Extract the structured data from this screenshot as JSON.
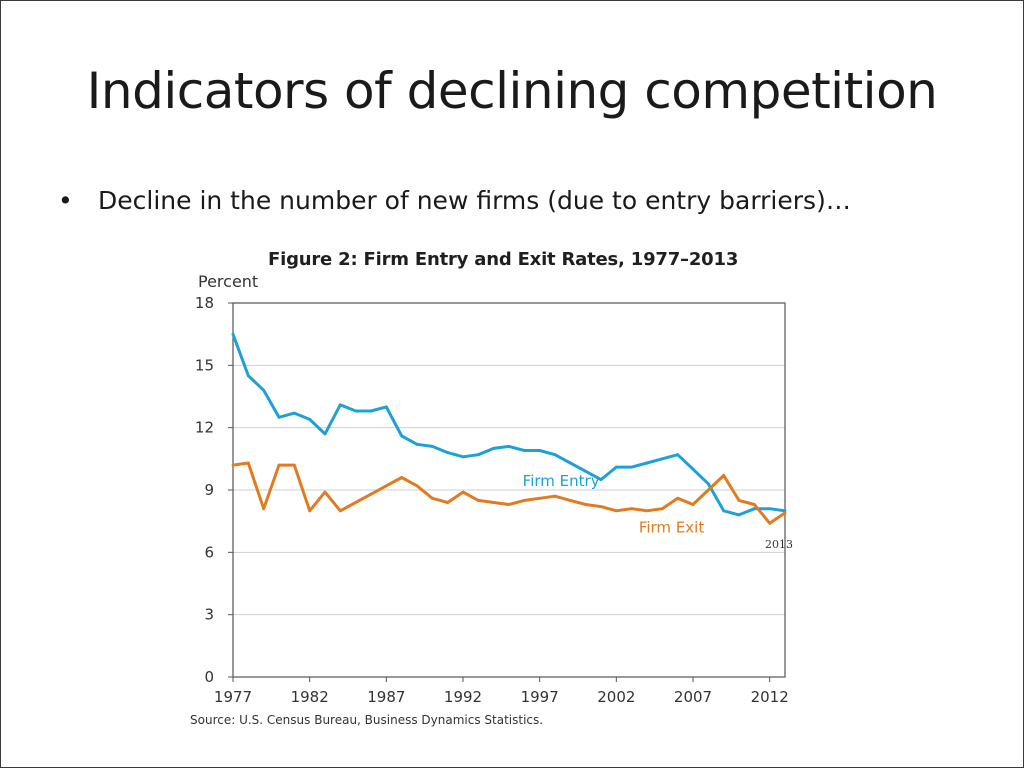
{
  "slide": {
    "title": "Indicators of declining competition",
    "bullet_marker": "•",
    "bullet_text": "Decline in the number of new firms (due to entry barriers)…"
  },
  "chart_data": {
    "type": "line",
    "title": "Figure 2: Firm Entry and Exit Rates, 1977–2013",
    "ylabel": "Percent",
    "xlabel": "",
    "source": "Source: U.S. Census Bureau, Business Dynamics Statistics.",
    "xlim": [
      1977,
      2013
    ],
    "ylim": [
      0,
      18
    ],
    "x_ticks": [
      1977,
      1982,
      1987,
      1992,
      1997,
      2002,
      2007,
      2012
    ],
    "y_ticks": [
      0,
      3,
      6,
      9,
      12,
      15,
      18
    ],
    "grid": true,
    "end_label": "2013",
    "x": [
      1977,
      1978,
      1979,
      1980,
      1981,
      1982,
      1983,
      1984,
      1985,
      1986,
      1987,
      1988,
      1989,
      1990,
      1991,
      1992,
      1993,
      1994,
      1995,
      1996,
      1997,
      1998,
      1999,
      2000,
      2001,
      2002,
      2003,
      2004,
      2005,
      2006,
      2007,
      2008,
      2009,
      2010,
      2011,
      2012,
      2013
    ],
    "series": [
      {
        "name": "Firm Entry",
        "color": "#1fa0d6",
        "values": [
          16.5,
          14.5,
          13.8,
          12.5,
          12.7,
          12.4,
          11.7,
          13.1,
          12.8,
          12.8,
          13.0,
          11.6,
          11.2,
          11.1,
          10.8,
          10.6,
          10.7,
          11.0,
          11.1,
          10.9,
          10.9,
          10.7,
          10.3,
          9.9,
          9.5,
          10.1,
          10.1,
          10.3,
          10.5,
          10.7,
          10.0,
          9.3,
          8.0,
          7.8,
          8.1,
          8.1,
          8.0
        ]
      },
      {
        "name": "Firm Exit",
        "color": "#e07b20",
        "values": [
          10.2,
          10.3,
          8.1,
          10.2,
          10.2,
          8.0,
          8.9,
          8.0,
          8.4,
          8.8,
          9.2,
          9.6,
          9.2,
          8.6,
          8.4,
          8.9,
          8.5,
          8.4,
          8.3,
          8.5,
          8.6,
          8.7,
          8.5,
          8.3,
          8.2,
          8.0,
          8.1,
          8.0,
          8.1,
          8.6,
          8.3,
          9.0,
          9.7,
          8.5,
          8.3,
          7.4,
          7.9
        ]
      }
    ]
  }
}
